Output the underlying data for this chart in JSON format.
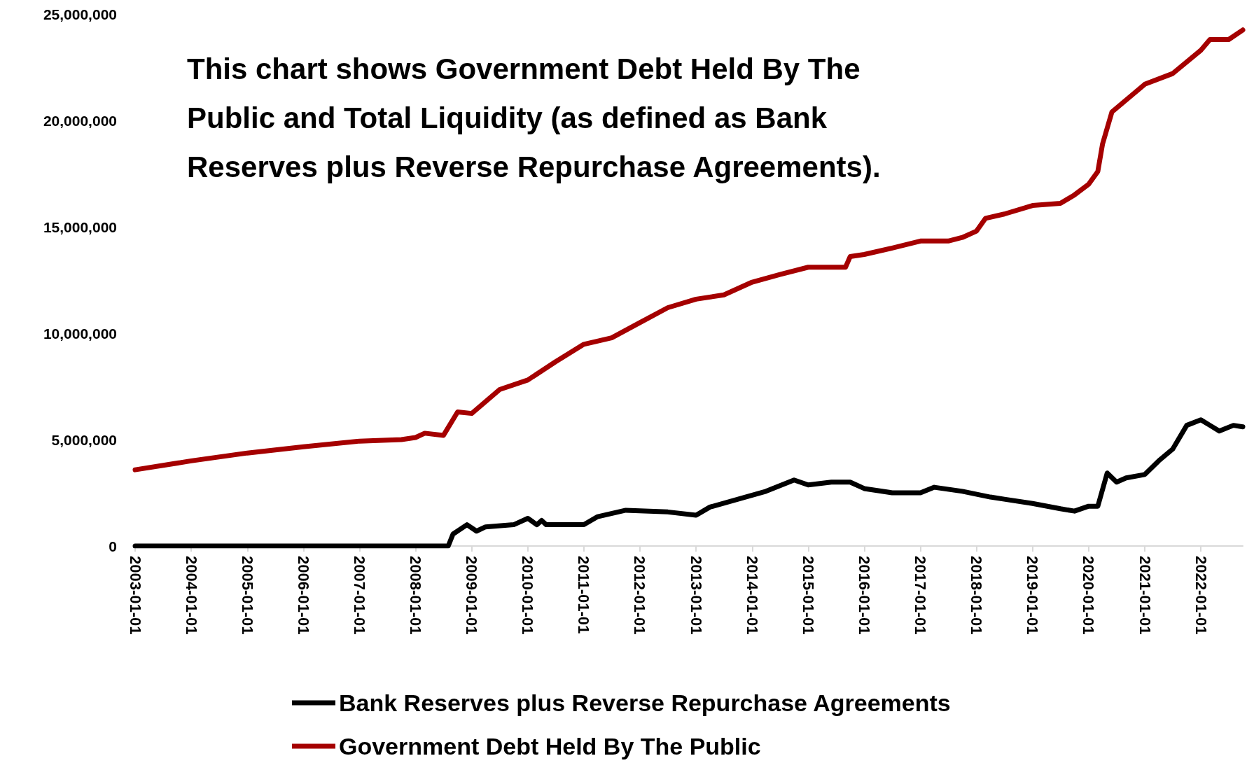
{
  "chart_data": {
    "type": "line",
    "title": "This chart shows Government Debt Held By The Public and Total Liquidity (as defined as Bank Reserves plus Reverse Repurchase Agreements).",
    "ylim": [
      0,
      25000000
    ],
    "yticks": [
      {
        "value": 0,
        "label": "0"
      },
      {
        "value": 5000000,
        "label": "5,000,000"
      },
      {
        "value": 10000000,
        "label": "10,000,000"
      },
      {
        "value": 15000000,
        "label": "15,000,000"
      },
      {
        "value": 20000000,
        "label": "20,000,000"
      },
      {
        "value": 25000000,
        "label": "25,000,000"
      }
    ],
    "xlim": [
      "2003-01-01",
      "2022-10-01"
    ],
    "xticks": [
      "2003-01-01",
      "2004-01-01",
      "2005-01-01",
      "2006-01-01",
      "2007-01-01",
      "2008-01-01",
      "2009-01-01",
      "2010-01-01",
      "2011-01-01",
      "2012-01-01",
      "2013-01-01",
      "2014-01-01",
      "2015-01-01",
      "2016-01-01",
      "2017-01-01",
      "2018-01-01",
      "2019-01-01",
      "2020-01-01",
      "2021-01-01",
      "2022-01-01"
    ],
    "grid": false,
    "legend": "bottom",
    "marker": "none",
    "line_style": "solid",
    "series": [
      {
        "name": "Bank Reserves plus Reverse Repurchase Agreements",
        "color": "#000000",
        "x": [
          "2003-01-01",
          "2008-08-01",
          "2008-09-01",
          "2008-12-01",
          "2009-02-01",
          "2009-04-01",
          "2009-10-01",
          "2010-01-01",
          "2010-03-01",
          "2010-04-01",
          "2010-05-01",
          "2011-01-01",
          "2011-04-01",
          "2011-10-01",
          "2012-07-01",
          "2013-01-01",
          "2013-04-01",
          "2013-10-01",
          "2014-04-01",
          "2014-10-01",
          "2015-01-01",
          "2015-06-01",
          "2015-10-01",
          "2016-01-01",
          "2016-07-01",
          "2017-01-01",
          "2017-04-01",
          "2017-10-01",
          "2018-04-01",
          "2018-07-01",
          "2019-01-01",
          "2019-07-01",
          "2019-10-01",
          "2020-01-01",
          "2020-03-01",
          "2020-05-01",
          "2020-07-01",
          "2020-09-01",
          "2021-01-01",
          "2021-04-01",
          "2021-07-01",
          "2021-10-01",
          "2022-01-01",
          "2022-03-01",
          "2022-05-01",
          "2022-08-01",
          "2022-10-01"
        ],
        "values": [
          0,
          0,
          560000,
          1000000,
          700000,
          900000,
          1000000,
          1300000,
          1000000,
          1200000,
          1000000,
          1000000,
          1380000,
          1680000,
          1600000,
          1450000,
          1830000,
          2200000,
          2570000,
          3100000,
          2870000,
          3000000,
          3000000,
          2700000,
          2500000,
          2500000,
          2760000,
          2570000,
          2300000,
          2200000,
          2000000,
          1750000,
          1640000,
          1870000,
          1870000,
          3430000,
          3000000,
          3200000,
          3360000,
          4000000,
          4550000,
          5670000,
          5930000,
          5670000,
          5400000,
          5670000,
          5600000
        ]
      },
      {
        "name": "Government Debt Held By The Public",
        "color": "#a50000",
        "x": [
          "2003-01-01",
          "2004-01-01",
          "2005-01-01",
          "2006-01-01",
          "2007-01-01",
          "2007-10-01",
          "2008-01-01",
          "2008-03-01",
          "2008-07-01",
          "2008-10-01",
          "2009-01-01",
          "2009-07-01",
          "2010-01-01",
          "2010-07-01",
          "2011-01-01",
          "2011-07-01",
          "2012-01-01",
          "2012-07-01",
          "2013-01-01",
          "2013-07-01",
          "2014-01-01",
          "2014-07-01",
          "2015-01-01",
          "2015-09-01",
          "2015-10-01",
          "2016-01-01",
          "2016-07-01",
          "2017-01-01",
          "2017-07-01",
          "2017-10-01",
          "2018-01-01",
          "2018-03-01",
          "2018-07-01",
          "2019-01-01",
          "2019-07-01",
          "2019-10-01",
          "2020-01-01",
          "2020-03-01",
          "2020-04-01",
          "2020-06-01",
          "2021-01-01",
          "2021-07-01",
          "2022-01-01",
          "2022-03-01",
          "2022-07-01",
          "2022-10-01"
        ],
        "values": [
          3580000,
          4000000,
          4370000,
          4660000,
          4930000,
          5000000,
          5100000,
          5300000,
          5200000,
          6300000,
          6230000,
          7350000,
          7800000,
          8660000,
          9480000,
          9780000,
          10500000,
          11200000,
          11600000,
          11800000,
          12400000,
          12760000,
          13100000,
          13100000,
          13600000,
          13700000,
          14000000,
          14330000,
          14330000,
          14500000,
          14800000,
          15400000,
          15600000,
          16000000,
          16100000,
          16500000,
          17000000,
          17600000,
          18900000,
          20400000,
          21700000,
          22200000,
          23300000,
          23800000,
          23800000,
          24250000
        ]
      }
    ]
  }
}
